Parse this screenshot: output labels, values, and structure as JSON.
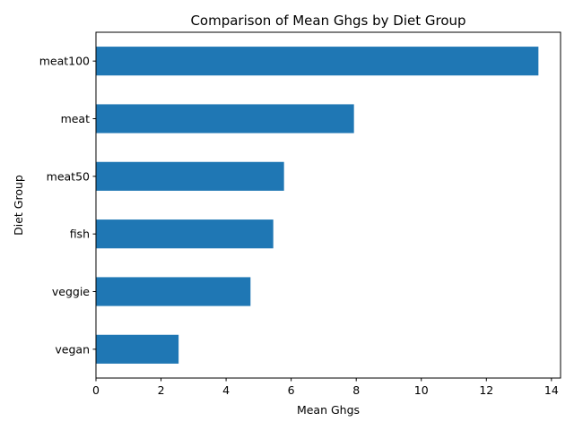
{
  "chart_data": {
    "type": "bar",
    "orientation": "horizontal",
    "title": "Comparison of Mean Ghgs by Diet Group",
    "xlabel": "Mean Ghgs",
    "ylabel": "Diet Group",
    "categories": [
      "vegan",
      "veggie",
      "fish",
      "meat50",
      "meat",
      "meat100"
    ],
    "values": [
      2.54,
      4.75,
      5.45,
      5.78,
      7.93,
      13.6
    ],
    "xlim": [
      0,
      14.28
    ],
    "xticks": [
      0,
      2,
      4,
      6,
      8,
      10,
      12,
      14
    ],
    "grid": false,
    "bar_color": "#1f77b4"
  }
}
